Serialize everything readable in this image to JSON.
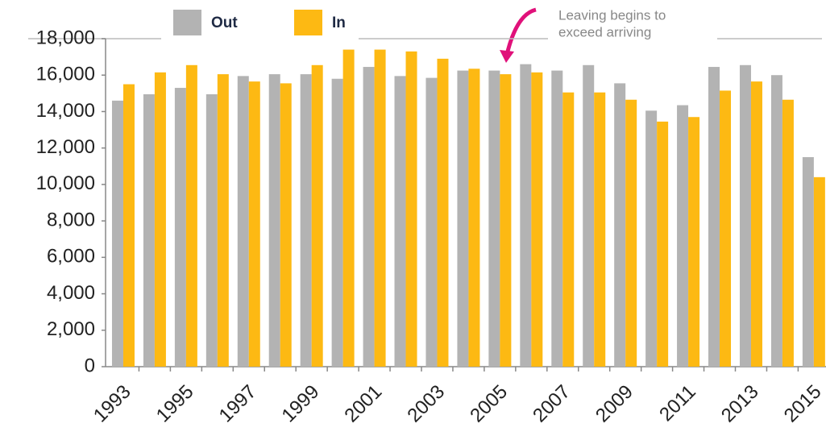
{
  "chart_data": {
    "type": "bar",
    "annotation": [
      "Leaving begins to",
      "exceed arriving"
    ],
    "categories": [
      "1993",
      null,
      "1995",
      null,
      "1997",
      null,
      "1999",
      null,
      "2001",
      null,
      "2003",
      null,
      "2005",
      null,
      "2007",
      null,
      "2009",
      null,
      "2011",
      null,
      "2013",
      null,
      "2015"
    ],
    "series": [
      {
        "name": "Out",
        "color": "#b3b3b3",
        "values": [
          14600,
          14950,
          15300,
          14950,
          15950,
          16050,
          16050,
          15800,
          16450,
          15950,
          15850,
          16250,
          16250,
          16600,
          16250,
          16550,
          15550,
          14050,
          14350,
          16450,
          16550,
          16000,
          11500
        ]
      },
      {
        "name": "In",
        "color": "#fdb913",
        "values": [
          15500,
          16150,
          16550,
          16050,
          15650,
          15550,
          16550,
          17400,
          17400,
          17300,
          16900,
          16350,
          16050,
          16150,
          15050,
          15050,
          14650,
          13450,
          13700,
          15150,
          15650,
          14650,
          10400
        ]
      }
    ],
    "ylim": [
      0,
      18000
    ],
    "yticks": [
      0,
      {
        "value": 2000,
        "label": "2,000"
      },
      {
        "value": 4000,
        "label": "4,000"
      },
      {
        "value": 6000,
        "label": "6,000"
      },
      {
        "value": 8000,
        "label": "8,000"
      },
      {
        "value": 10000,
        "label": "10,000"
      },
      {
        "value": 12000,
        "label": "12,000"
      },
      {
        "value": 14000,
        "label": "14,000"
      },
      {
        "value": 16000,
        "label": "16,000"
      },
      {
        "value": 18000,
        "label": "18,000"
      }
    ]
  }
}
